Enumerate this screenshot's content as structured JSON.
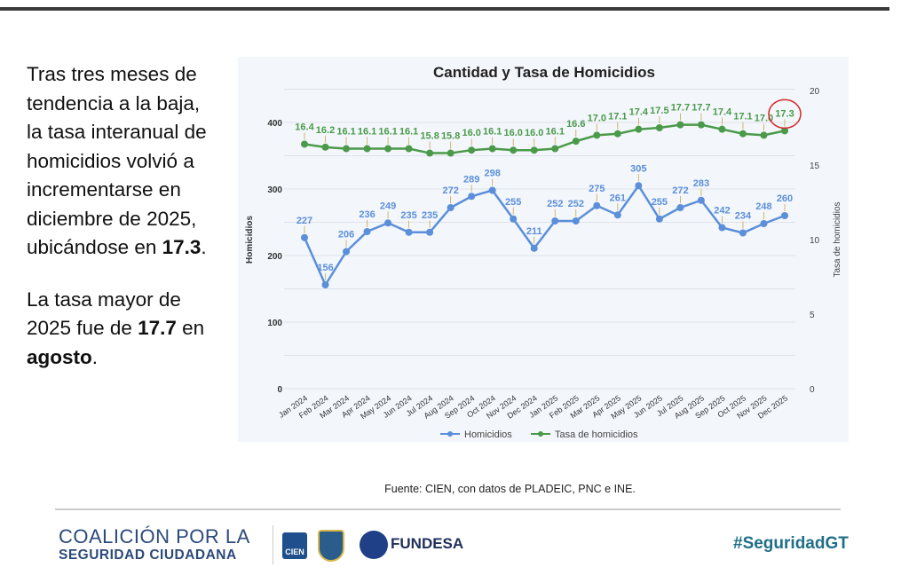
{
  "left_text": {
    "p1_pre": "Tras tres meses de tendencia a la baja, la tasa interanual de homicidios volvió a incrementarse en diciembre de 2025, ubicándose en ",
    "p1_bold": "17.3",
    "p1_post": ".",
    "p2_pre": "La tasa mayor de 2025 fue de ",
    "p2_bold": "17.7",
    "p2_mid": " en ",
    "p2_bold2": "agosto",
    "p2_post": "."
  },
  "source": "Fuente: CIEN, con datos de PLADEIC, PNC e INE.",
  "footer": {
    "logo_line1": "COALICIÓN POR LA",
    "logo_line2": "SEGURIDAD CIUDADANA",
    "cien": "CIEN",
    "fundesa": "FUNDESA",
    "hashtag": "#SeguridadGT"
  },
  "chart_data": {
    "type": "line",
    "title": "Cantidad y Tasa de Homicidios",
    "categories": [
      "Jan 2024",
      "Feb 2024",
      "Mar 2024",
      "Apr 2024",
      "May 2024",
      "Jun 2024",
      "Jul 2024",
      "Aug 2024",
      "Sep 2024",
      "Oct 2024",
      "Nov 2024",
      "Dec 2024",
      "Jan 2025",
      "Feb 2025",
      "Mar 2025",
      "Apr 2025",
      "May 2025",
      "Jun 2025",
      "Jul 2025",
      "Aug 2025",
      "Sep 2025",
      "Oct 2025",
      "Nov 2025",
      "Dec 2025"
    ],
    "ylabel": "Homicidios",
    "y2label": "Tasa de homicidios",
    "ylim": [
      0,
      400
    ],
    "yticks": [
      0,
      100,
      200,
      300,
      400
    ],
    "y2lim": [
      0,
      20
    ],
    "y2ticks": [
      0,
      5,
      10,
      15,
      20
    ],
    "grid": true,
    "legend": "bottom",
    "highlight": {
      "series": "Tasa de homicidios",
      "category": "Dec 2025",
      "color": "#d62728"
    },
    "series": [
      {
        "name": "Homicidios",
        "axis": "left",
        "color": "#5b8fd9",
        "values": [
          227,
          156,
          206,
          236,
          249,
          235,
          235,
          272,
          289,
          298,
          255,
          211,
          252,
          252,
          275,
          261,
          305,
          255,
          272,
          283,
          242,
          234,
          248,
          260
        ]
      },
      {
        "name": "Tasa de homicidios",
        "axis": "right",
        "color": "#4a9a4a",
        "values": [
          16.4,
          16.2,
          16.1,
          16.1,
          16.1,
          16.1,
          15.8,
          15.8,
          16.0,
          16.1,
          16.0,
          16.0,
          16.1,
          16.6,
          17.0,
          17.1,
          17.4,
          17.5,
          17.7,
          17.7,
          17.4,
          17.1,
          17.0,
          17.3
        ]
      }
    ]
  }
}
